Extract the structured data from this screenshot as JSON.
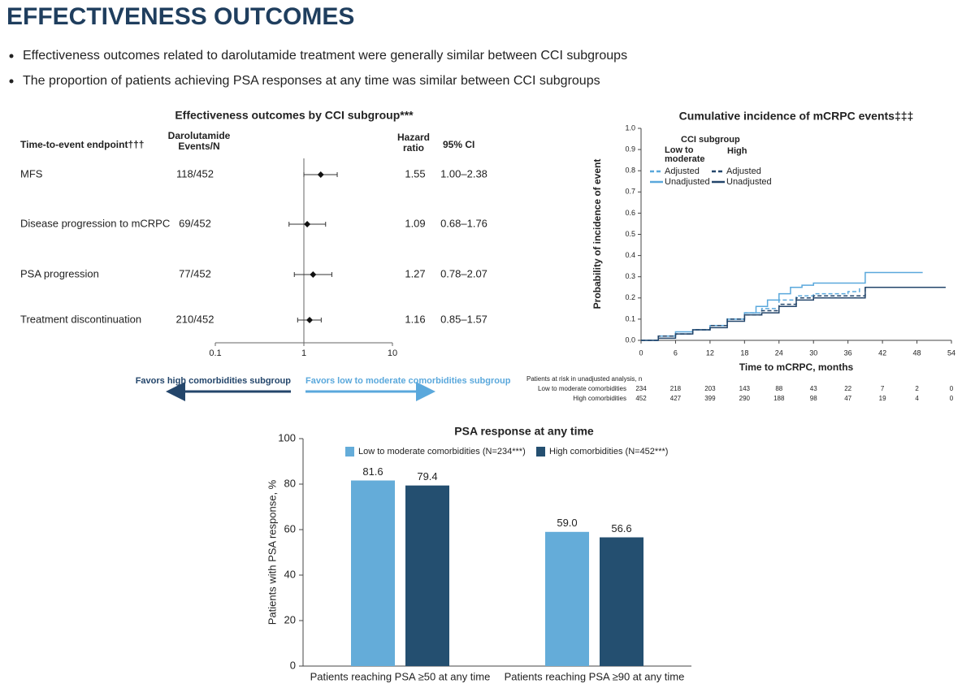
{
  "title": "EFFECTIVENESS OUTCOMES",
  "bullets": [
    "Effectiveness outcomes related to darolutamide treatment were generally similar between CCI subgroups",
    "The proportion of patients achieving PSA responses at any time was similar between CCI subgroups"
  ],
  "chart_data": [
    {
      "type": "forest",
      "title": "Effectiveness outcomes by CCI subgroup***",
      "columns": {
        "endpoint": "Time-to-event endpoint†††",
        "events": "Darolutamide Events/N",
        "hr": "Hazard ratio",
        "ci": "95% CI"
      },
      "categories": [
        "MFS",
        "Disease progression to mCRPC",
        "PSA progression",
        "Treatment discontinuation"
      ],
      "events": [
        "118/452",
        "69/452",
        "77/452",
        "210/452"
      ],
      "values": [
        1.55,
        1.09,
        1.27,
        1.16
      ],
      "ci_lower": [
        1.0,
        0.68,
        0.78,
        0.85
      ],
      "ci_upper": [
        2.38,
        1.76,
        2.07,
        1.57
      ],
      "ci_labels": [
        "1.00–2.38",
        "0.68–1.76",
        "0.78–2.07",
        "0.85–1.57"
      ],
      "log": true,
      "xlim": [
        0.1,
        10
      ],
      "xticks": [
        0.1,
        1,
        10
      ],
      "reference_line": 1,
      "favors": [
        {
          "text": "Favors high comorbidities subgroup",
          "color": "#24466b"
        },
        {
          "text": "Favors low to moderate comorbidities subgroup",
          "color": "#5aa8dc"
        }
      ]
    },
    {
      "type": "line",
      "title": "Cumulative incidence of mCRPC events‡‡‡",
      "xlabel": "Time to mCRPC, months",
      "ylabel": "Probability of incidence of event",
      "xlim": [
        0,
        54
      ],
      "xticks": [
        0,
        6,
        12,
        18,
        24,
        30,
        36,
        42,
        48,
        54
      ],
      "ylim": [
        0,
        1
      ],
      "yticks": [
        {
          "value": 0,
          "label": "0.0"
        },
        0.1,
        0.2,
        0.3,
        0.4,
        0.5,
        0.6,
        0.7,
        0.8,
        0.9,
        {
          "value": 1,
          "label": "1.0"
        }
      ],
      "step": true,
      "legend_title": "CCI subgroup",
      "groups": [
        {
          "name": "Low to moderate",
          "color": "#5aa8dc",
          "series": [
            {
              "name": "Adjusted",
              "dash": true,
              "x": [
                0,
                3,
                6,
                9,
                12,
                15,
                18,
                21,
                24,
                27,
                30,
                33,
                36,
                38
              ],
              "values": [
                0,
                0.02,
                0.03,
                0.05,
                0.07,
                0.1,
                0.13,
                0.15,
                0.19,
                0.21,
                0.22,
                0.22,
                0.23,
                0.25
              ]
            },
            {
              "name": "Unadjusted",
              "dash": false,
              "x": [
                0,
                3,
                6,
                9,
                12,
                15,
                18,
                20,
                22,
                24,
                26,
                28,
                30,
                32,
                36,
                39,
                44,
                49
              ],
              "values": [
                0,
                0.02,
                0.04,
                0.05,
                0.07,
                0.1,
                0.13,
                0.16,
                0.19,
                0.22,
                0.25,
                0.26,
                0.27,
                0.27,
                0.27,
                0.32,
                0.32,
                0.32
              ]
            }
          ]
        },
        {
          "name": "High",
          "color": "#24466b",
          "series": [
            {
              "name": "Adjusted",
              "dash": true,
              "x": [
                0,
                3,
                6,
                9,
                12,
                15,
                18,
                21,
                24,
                27,
                30,
                33,
                36,
                39
              ],
              "values": [
                0,
                0.02,
                0.03,
                0.05,
                0.07,
                0.1,
                0.12,
                0.14,
                0.17,
                0.2,
                0.21,
                0.21,
                0.21,
                0.25
              ]
            },
            {
              "name": "Unadjusted",
              "dash": false,
              "x": [
                0,
                3,
                6,
                9,
                12,
                15,
                18,
                21,
                24,
                27,
                30,
                33,
                36,
                39,
                45,
                53
              ],
              "values": [
                0,
                0.01,
                0.03,
                0.05,
                0.06,
                0.09,
                0.12,
                0.13,
                0.16,
                0.19,
                0.2,
                0.2,
                0.2,
                0.25,
                0.25,
                0.25
              ]
            }
          ]
        }
      ],
      "risk_table": {
        "title": "Patients at risk in unadjusted analysis, n",
        "rows": [
          {
            "name": "Low to moderate comorbidities",
            "values": [
              234,
              218,
              203,
              143,
              88,
              43,
              22,
              7,
              2,
              0
            ]
          },
          {
            "name": "High comorbidities",
            "values": [
              452,
              427,
              399,
              290,
              188,
              98,
              47,
              19,
              4,
              0
            ]
          }
        ]
      }
    },
    {
      "type": "bar",
      "title": "PSA response at any time",
      "ylabel": "Patients with PSA response, %",
      "categories": [
        "Patients reaching PSA ≥50 at any time",
        "Patients reaching PSA ≥90 at any time"
      ],
      "series": [
        {
          "name": "Low to moderate comorbidities (N=234***)",
          "color": "#64acd9",
          "values": [
            81.6,
            59.0
          ],
          "value_labels": [
            "81.6",
            "59.0"
          ]
        },
        {
          "name": "High comorbidities (N=452***)",
          "color": "#244f70",
          "values": [
            79.4,
            56.6
          ]
        }
      ],
      "ylim": [
        0,
        100
      ],
      "yticks": [
        0,
        20,
        40,
        60,
        80,
        100
      ]
    }
  ]
}
